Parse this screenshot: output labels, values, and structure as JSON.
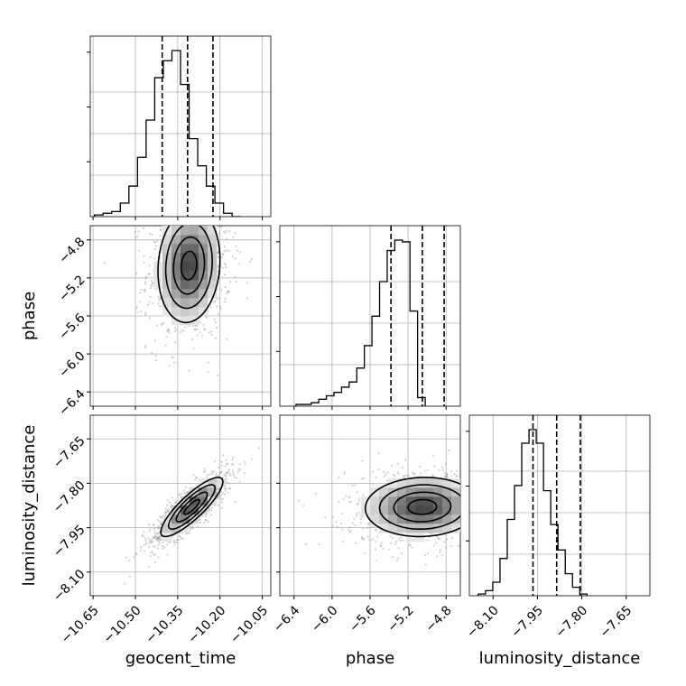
{
  "chart_data": {
    "type": "corner",
    "parameters": [
      "geocent_time",
      "phase",
      "luminosity_distance"
    ],
    "xlabels": [
      "geocent_time",
      "phase",
      "luminosity_distance"
    ],
    "ylabels": [
      "",
      "phase",
      "luminosity_distance"
    ],
    "ranges": {
      "geocent_time": [
        -10.66,
        -10.02
      ],
      "phase": [
        -6.55,
        -4.65
      ],
      "luminosity_distance": [
        -8.18,
        -7.57
      ]
    },
    "ticks": {
      "geocent_time": {
        "values": [
          -10.65,
          -10.5,
          -10.35,
          -10.2,
          -10.05
        ],
        "labels": [
          "−10.65",
          "−10.50",
          "−10.35",
          "−10.20",
          "−10.05"
        ]
      },
      "phase": {
        "values": [
          -6.4,
          -6.0,
          -5.6,
          -5.2,
          -4.8
        ],
        "labels": [
          "−6.4",
          "−6.0",
          "−5.6",
          "−5.2",
          "−4.8"
        ]
      },
      "luminosity_distance": {
        "values": [
          -8.1,
          -7.95,
          -7.8,
          -7.65
        ],
        "labels": [
          "−8.10",
          "−7.95",
          "−7.80",
          "−7.65"
        ]
      }
    },
    "quantiles": {
      "geocent_time": [
        -10.405,
        -10.315,
        -10.225
      ],
      "phase": [
        -5.38,
        -5.05,
        -4.82
      ],
      "luminosity_distance": [
        -7.965,
        -7.885,
        -7.805
      ]
    },
    "histograms": {
      "geocent_time": {
        "x_start": -10.645,
        "bin_width": 0.0305,
        "counts": [
          1,
          2,
          3,
          8,
          18,
          35,
          57,
          82,
          92,
          98,
          78,
          46,
          30,
          18,
          8,
          2,
          0
        ]
      },
      "phase": {
        "x_start": -6.38,
        "bin_width": 0.08,
        "counts": [
          1,
          1,
          2,
          4,
          6,
          8,
          11,
          14,
          22,
          35,
          52,
          72,
          90,
          96,
          95,
          55,
          5
        ]
      },
      "luminosity_distance": {
        "x_start": -8.15,
        "bin_width": 0.0245,
        "counts": [
          1,
          3,
          8,
          22,
          45,
          65,
          90,
          98,
          90,
          62,
          42,
          27,
          13,
          5,
          1
        ]
      }
    },
    "density": [
      {
        "x": "geocent_time",
        "y": "phase",
        "center": [
          -10.31,
          -5.07
        ],
        "sigma": [
          0.055,
          0.3
        ],
        "rho": 0.1
      },
      {
        "x": "geocent_time",
        "y": "luminosity_distance",
        "center": [
          -10.3,
          -7.88
        ],
        "sigma": [
          0.055,
          0.05
        ],
        "rho": 0.85
      },
      {
        "x": "phase",
        "y": "luminosity_distance",
        "center": [
          -5.05,
          -7.88
        ],
        "sigma": [
          0.3,
          0.05
        ],
        "rho": 0.05
      }
    ],
    "grid": true
  }
}
